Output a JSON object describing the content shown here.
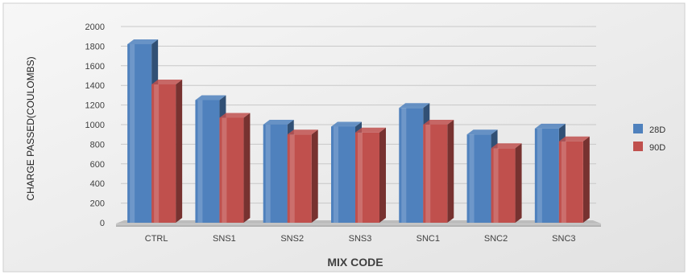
{
  "chart_data": {
    "type": "bar",
    "title": "",
    "xlabel": "MIX CODE",
    "ylabel": "CHARGE PASSED(COULOMBS)",
    "categories": [
      "CTRL",
      "SNS1",
      "SNS2",
      "SNS3",
      "SNC1",
      "SNC2",
      "SNC3"
    ],
    "series": [
      {
        "name": "28D",
        "color": "#4f81bd",
        "values": [
          1820,
          1250,
          1000,
          980,
          1170,
          900,
          960
        ]
      },
      {
        "name": "90D",
        "color": "#c0504d",
        "values": [
          1410,
          1070,
          900,
          920,
          1000,
          760,
          830
        ]
      }
    ],
    "ylim": [
      0,
      2000
    ],
    "yticks": [
      0,
      200,
      400,
      600,
      800,
      1000,
      1200,
      1400,
      1600,
      1800,
      2000
    ],
    "grid": true,
    "legend_position": "right",
    "style": "3d-clustered-column"
  }
}
